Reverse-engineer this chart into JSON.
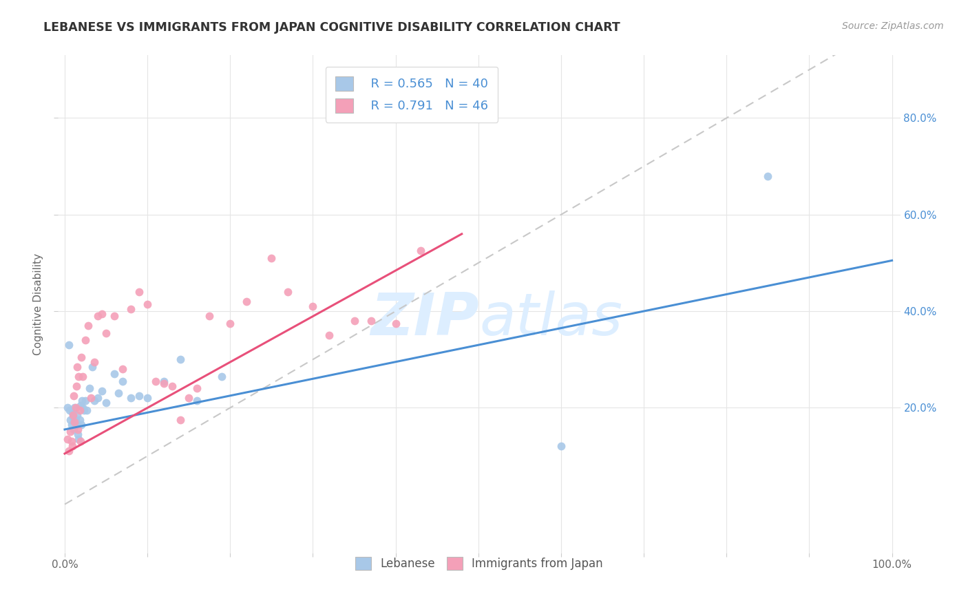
{
  "title": "LEBANESE VS IMMIGRANTS FROM JAPAN COGNITIVE DISABILITY CORRELATION CHART",
  "source": "Source: ZipAtlas.com",
  "ylabel": "Cognitive Disability",
  "y_ticks": [
    0.2,
    0.4,
    0.6,
    0.8
  ],
  "y_tick_labels": [
    "20.0%",
    "40.0%",
    "60.0%",
    "80.0%"
  ],
  "x_ticks": [
    0.0,
    0.1,
    0.2,
    0.3,
    0.4,
    0.5,
    0.6,
    0.7,
    0.8,
    0.9,
    1.0
  ],
  "x_tick_labels": [
    "0.0%",
    "",
    "",
    "",
    "",
    "",
    "",
    "",
    "",
    "",
    "100.0%"
  ],
  "legend_labels": [
    "Lebanese",
    "Immigrants from Japan"
  ],
  "legend_r": [
    "R = 0.565",
    "R = 0.791"
  ],
  "legend_n": [
    "N = 40",
    "N = 46"
  ],
  "blue_color": "#a8c8e8",
  "pink_color": "#f4a0b8",
  "blue_line_color": "#4a8fd4",
  "pink_line_color": "#e8507a",
  "diagonal_color": "#c8c8c8",
  "watermark_color": "#ddeeff",
  "blue_scatter_x": [
    0.003,
    0.005,
    0.006,
    0.007,
    0.008,
    0.009,
    0.01,
    0.011,
    0.012,
    0.013,
    0.014,
    0.015,
    0.016,
    0.017,
    0.018,
    0.019,
    0.02,
    0.021,
    0.022,
    0.023,
    0.025,
    0.027,
    0.03,
    0.033,
    0.036,
    0.04,
    0.045,
    0.05,
    0.06,
    0.065,
    0.07,
    0.08,
    0.09,
    0.1,
    0.12,
    0.14,
    0.16,
    0.19,
    0.6,
    0.85
  ],
  "blue_scatter_y": [
    0.2,
    0.33,
    0.195,
    0.175,
    0.165,
    0.19,
    0.18,
    0.155,
    0.2,
    0.175,
    0.165,
    0.185,
    0.145,
    0.135,
    0.175,
    0.205,
    0.165,
    0.215,
    0.2,
    0.195,
    0.215,
    0.195,
    0.24,
    0.285,
    0.215,
    0.22,
    0.235,
    0.21,
    0.27,
    0.23,
    0.255,
    0.22,
    0.225,
    0.22,
    0.255,
    0.3,
    0.215,
    0.265,
    0.12,
    0.68
  ],
  "pink_scatter_x": [
    0.003,
    0.005,
    0.007,
    0.008,
    0.009,
    0.01,
    0.011,
    0.012,
    0.013,
    0.014,
    0.015,
    0.016,
    0.017,
    0.018,
    0.019,
    0.02,
    0.022,
    0.025,
    0.028,
    0.032,
    0.036,
    0.04,
    0.045,
    0.05,
    0.06,
    0.07,
    0.08,
    0.09,
    0.1,
    0.11,
    0.12,
    0.13,
    0.14,
    0.15,
    0.16,
    0.175,
    0.2,
    0.22,
    0.25,
    0.27,
    0.3,
    0.32,
    0.35,
    0.37,
    0.4,
    0.43
  ],
  "pink_scatter_y": [
    0.135,
    0.11,
    0.15,
    0.13,
    0.12,
    0.185,
    0.225,
    0.17,
    0.2,
    0.245,
    0.285,
    0.155,
    0.265,
    0.195,
    0.13,
    0.305,
    0.265,
    0.34,
    0.37,
    0.22,
    0.295,
    0.39,
    0.395,
    0.355,
    0.39,
    0.28,
    0.405,
    0.44,
    0.415,
    0.255,
    0.25,
    0.245,
    0.175,
    0.22,
    0.24,
    0.39,
    0.375,
    0.42,
    0.51,
    0.44,
    0.41,
    0.35,
    0.38,
    0.38,
    0.375,
    0.525
  ],
  "blue_line_x": [
    0.0,
    1.0
  ],
  "blue_line_y": [
    0.155,
    0.505
  ],
  "pink_line_x": [
    0.0,
    0.48
  ],
  "pink_line_y": [
    0.105,
    0.56
  ],
  "xlim": [
    -0.008,
    1.01
  ],
  "ylim": [
    -0.1,
    0.93
  ]
}
